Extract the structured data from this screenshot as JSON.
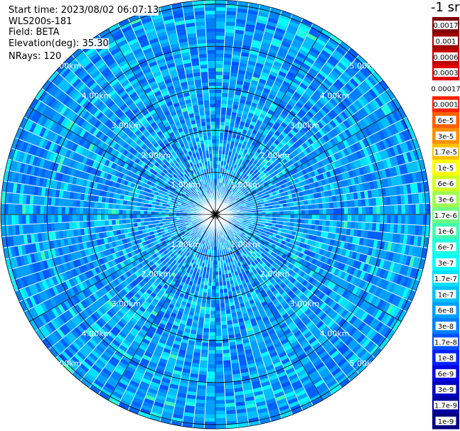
{
  "info": {
    "start_time": "Start time: 2023/08/02 06:07:13",
    "instrument": "WLS200s-181",
    "field": "Field: BETA",
    "elevation": "Elevation(deg): 35.30",
    "nrays": "NRays: 120"
  },
  "colorbar": {
    "title": "-1 sr",
    "labels": [
      "0.0017",
      "0.001",
      "0.0006",
      "0.0003",
      "0.00017",
      "0.0001",
      "6e-5",
      "3e-5",
      "1.7e-5",
      "1e-5",
      "6e-6",
      "3e-6",
      "1.7e-6",
      "1e-6",
      "6e-7",
      "3e-7",
      "1.7e-7",
      "1e-7",
      "6e-8",
      "3e-8",
      "1.7e-8",
      "1e-8",
      "6e-9",
      "3e-9",
      "1.7e-9",
      "1e-9"
    ],
    "colors": [
      "#800000",
      "#a00000",
      "#c00000",
      "#e00000",
      "#ffffff",
      "#ff2000",
      "#ff6000",
      "#ff9000",
      "#ffc000",
      "#ffff00",
      "#d0ff20",
      "#a0ff50",
      "#70ff80",
      "#40ffb0",
      "#20ffe0",
      "#00ffff",
      "#00e0ff",
      "#00c0ff",
      "#00a0ff",
      "#0080ff",
      "#0050ff",
      "#0020ff",
      "#0000e0",
      "#0000c0",
      "#0000a0",
      "#000080"
    ]
  },
  "chart_data": {
    "type": "polar_ppi",
    "field": "BETA",
    "instrument": "WLS200s-181",
    "start_time": "2023/08/02 06:07:13",
    "elevation_deg": 35.3,
    "nrays": 120,
    "range_ring_labels": [
      "1.00km",
      "2.00km",
      "3.00km",
      "4.00km",
      "5.00km"
    ],
    "range_rings_km": [
      1,
      2,
      3,
      4,
      5
    ],
    "max_range_km": 5.1,
    "azimuth_spokes_deg": [
      0,
      30,
      60,
      90,
      120,
      150,
      180,
      210,
      240,
      270,
      300,
      330
    ],
    "dominant_value_range_sr": [
      1e-08,
      1e-07
    ],
    "colorbar_scale": "log",
    "colorbar_range_sr": [
      1e-09,
      0.0017
    ]
  }
}
